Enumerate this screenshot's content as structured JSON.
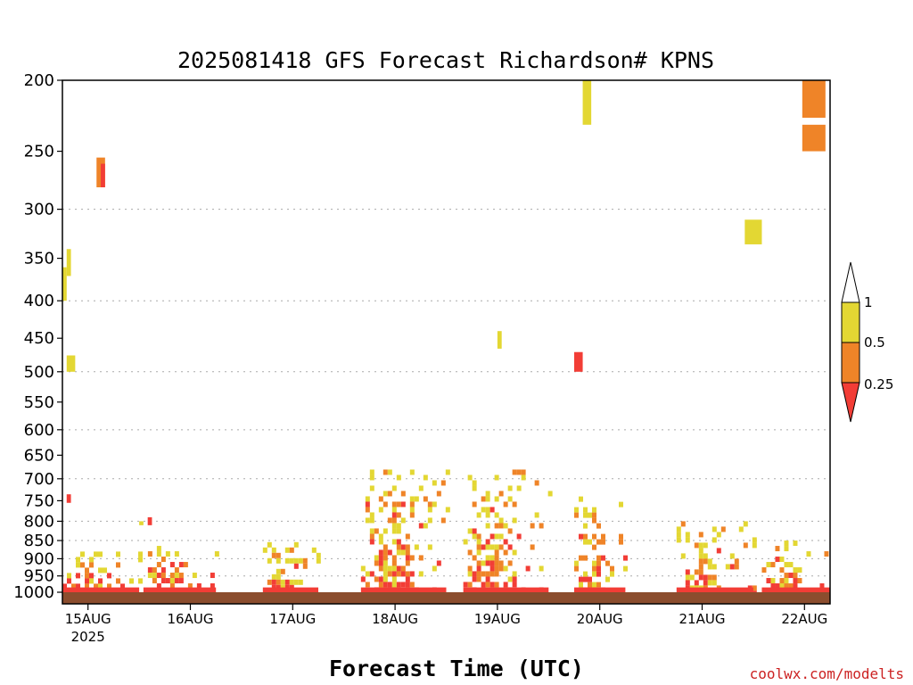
{
  "chart_data": {
    "type": "heatmap",
    "title": "2025081418 GFS Forecast Richardson# KPNS",
    "xlabel": "Forecast Time (UTC)",
    "ylabel": "",
    "credit": "coolwx.com/modelts",
    "y_scale": "log",
    "y_inverted": true,
    "ylim": [
      200,
      1000
    ],
    "y_ticks": [
      200,
      250,
      300,
      350,
      400,
      450,
      500,
      550,
      600,
      650,
      700,
      750,
      800,
      850,
      900,
      950,
      1000
    ],
    "y_gridlines": [
      300,
      400,
      500,
      600,
      700,
      800,
      850,
      900,
      950
    ],
    "xlim": [
      "2025-08-14T18",
      "2025-08-22T06"
    ],
    "x_ticks": [
      {
        "time": "2025-08-15T00",
        "label": "15AUG",
        "sublabel": "2025"
      },
      {
        "time": "2025-08-16T00",
        "label": "16AUG"
      },
      {
        "time": "2025-08-17T00",
        "label": "17AUG"
      },
      {
        "time": "2025-08-18T00",
        "label": "18AUG"
      },
      {
        "time": "2025-08-19T00",
        "label": "19AUG"
      },
      {
        "time": "2025-08-20T00",
        "label": "20AUG"
      },
      {
        "time": "2025-08-21T00",
        "label": "21AUG"
      },
      {
        "time": "2025-08-22T00",
        "label": "22AUG"
      }
    ],
    "legend": {
      "placement": "right",
      "labels": [
        "1",
        "0.5",
        "0.25"
      ],
      "bins": [
        {
          "range": "0.5–1",
          "color": "#e3d733"
        },
        {
          "range": "0.25–0.5",
          "color": "#ef8428"
        },
        {
          "range": "<0.25",
          "color": "#f23d36"
        }
      ]
    },
    "ground_color": "#8b4d2e",
    "regions": [
      {
        "t0": "2025-08-15T02",
        "t1": "2025-08-15T04",
        "p0": 255,
        "p1": 280,
        "category": "orange"
      },
      {
        "t0": "2025-08-15T03",
        "t1": "2025-08-15T04",
        "p0": 260,
        "p1": 280,
        "category": "red"
      },
      {
        "t0": "2025-08-14T18",
        "t1": "2025-08-14T19",
        "p0": 360,
        "p1": 400,
        "category": "yellow"
      },
      {
        "t0": "2025-08-14T19",
        "t1": "2025-08-14T20",
        "p0": 340,
        "p1": 370,
        "category": "yellow"
      },
      {
        "t0": "2025-08-14T19",
        "t1": "2025-08-14T21",
        "p0": 475,
        "p1": 500,
        "category": "yellow"
      },
      {
        "t0": "2025-08-14T19",
        "t1": "2025-08-14T20",
        "p0": 735,
        "p1": 755,
        "category": "red"
      },
      {
        "t0": "2025-08-14T18",
        "t1": "2025-08-15T12",
        "p0": 880,
        "p1": 1000,
        "category": "mixed"
      },
      {
        "t0": "2025-08-15T12",
        "t1": "2025-08-15T13",
        "p0": 800,
        "p1": 810,
        "category": "yellow"
      },
      {
        "t0": "2025-08-15T14",
        "t1": "2025-08-15T15",
        "p0": 790,
        "p1": 810,
        "category": "red"
      },
      {
        "t0": "2025-08-15T13",
        "t1": "2025-08-16T06",
        "p0": 850,
        "p1": 1000,
        "category": "mixed"
      },
      {
        "t0": "2025-08-16T17",
        "t1": "2025-08-17T06",
        "p0": 840,
        "p1": 1000,
        "category": "mixed"
      },
      {
        "t0": "2025-08-17T16",
        "t1": "2025-08-18T12",
        "p0": 680,
        "p1": 1000,
        "category": "mixed"
      },
      {
        "t0": "2025-08-18T16",
        "t1": "2025-08-19T12",
        "p0": 680,
        "p1": 1000,
        "category": "mixed"
      },
      {
        "t0": "2025-08-19T00",
        "t1": "2025-08-19T01",
        "p0": 440,
        "p1": 465,
        "category": "yellow"
      },
      {
        "t0": "2025-08-19T18",
        "t1": "2025-08-19T20",
        "p0": 470,
        "p1": 500,
        "category": "red"
      },
      {
        "t0": "2025-08-19T20",
        "t1": "2025-08-19T22",
        "p0": 200,
        "p1": 230,
        "category": "yellow"
      },
      {
        "t0": "2025-08-19T18",
        "t1": "2025-08-20T06",
        "p0": 740,
        "p1": 1000,
        "category": "mixed"
      },
      {
        "t0": "2025-08-20T18",
        "t1": "2025-08-21T12",
        "p0": 800,
        "p1": 1000,
        "category": "mixed"
      },
      {
        "t0": "2025-08-21T10",
        "t1": "2025-08-21T14",
        "p0": 310,
        "p1": 335,
        "category": "yellow"
      },
      {
        "t0": "2025-08-21T14",
        "t1": "2025-08-22T06",
        "p0": 850,
        "p1": 1000,
        "category": "mixed"
      },
      {
        "t0": "2025-08-22T06",
        "t1": "2025-08-22T06",
        "p0": 200,
        "p1": 225,
        "category": "orange"
      },
      {
        "t0": "2025-08-22T06",
        "t1": "2025-08-22T06",
        "p0": 230,
        "p1": 250,
        "category": "orange"
      }
    ]
  }
}
